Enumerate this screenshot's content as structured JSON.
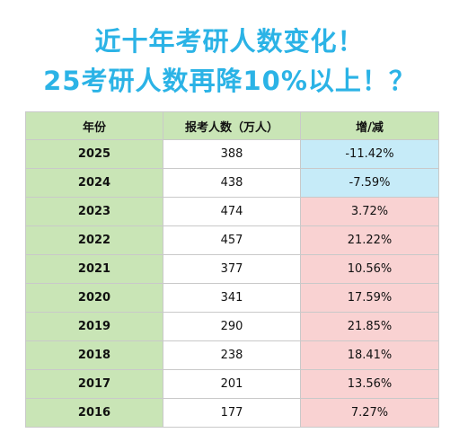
{
  "title": {
    "line1": "近十年考研人数变化！",
    "line2": "25考研人数再降10%以上！？"
  },
  "table": {
    "headers": [
      "年份",
      "报考人数（万人）",
      "增/减"
    ],
    "rows": [
      {
        "year": "2025",
        "count": "388",
        "change": "-11.42%",
        "trend": "decrease"
      },
      {
        "year": "2024",
        "count": "438",
        "change": "-7.59%",
        "trend": "decrease"
      },
      {
        "year": "2023",
        "count": "474",
        "change": "3.72%",
        "trend": "increase"
      },
      {
        "year": "2022",
        "count": "457",
        "change": "21.22%",
        "trend": "increase"
      },
      {
        "year": "2021",
        "count": "377",
        "change": "10.56%",
        "trend": "increase"
      },
      {
        "year": "2020",
        "count": "341",
        "change": "17.59%",
        "trend": "increase"
      },
      {
        "year": "2019",
        "count": "290",
        "change": "21.85%",
        "trend": "increase"
      },
      {
        "year": "2018",
        "count": "238",
        "change": "18.41%",
        "trend": "increase"
      },
      {
        "year": "2017",
        "count": "201",
        "change": "13.56%",
        "trend": "increase"
      },
      {
        "year": "2016",
        "count": "177",
        "change": "7.27%",
        "trend": "increase"
      }
    ],
    "colors": {
      "header_bg": "#c9e5b6",
      "year_bg": "#c9e5b6",
      "decrease_bg": "#c6ebf8",
      "increase_bg": "#f9d2d2",
      "title_color": "#2bb3e6"
    }
  }
}
